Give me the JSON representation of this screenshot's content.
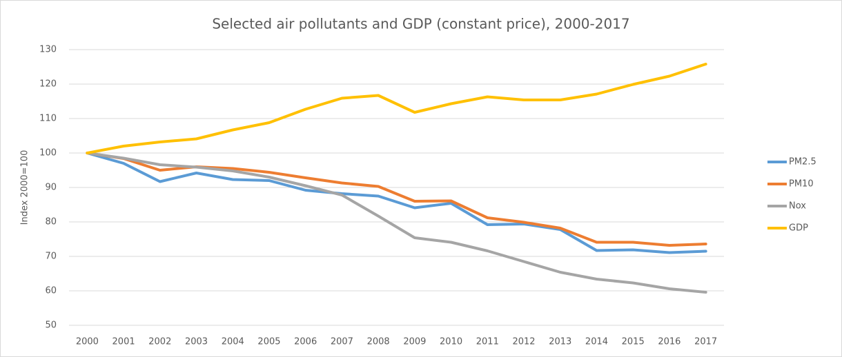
{
  "chart_data": {
    "type": "line",
    "title": "Selected air pollutants and GDP (constant price), 2000-2017",
    "y_label": "Index 2000=100",
    "x": [
      2000,
      2001,
      2002,
      2003,
      2004,
      2005,
      2006,
      2007,
      2008,
      2009,
      2010,
      2011,
      2012,
      2013,
      2014,
      2015,
      2016,
      2017
    ],
    "xlim": [
      1999.5,
      2017.5
    ],
    "ylim": [
      50,
      130
    ],
    "yticks": [
      50,
      60,
      70,
      80,
      90,
      100,
      110,
      120,
      130
    ],
    "grid": true,
    "legend": "right",
    "series": [
      {
        "name": "PM2.5",
        "color": "#5b9bd5",
        "values": [
          100,
          97,
          91.7,
          94.2,
          92.3,
          92,
          89.2,
          88.2,
          87.5,
          84.1,
          85.4,
          79.2,
          79.4,
          77.8,
          71.7,
          71.9,
          71.1,
          71.5
        ]
      },
      {
        "name": "PM10",
        "color": "#ed7d31",
        "values": [
          100,
          98.4,
          95,
          96,
          95.5,
          94.4,
          92.8,
          91.3,
          90.3,
          86,
          86.1,
          81.2,
          79.9,
          78.2,
          74.1,
          74.1,
          73.2,
          73.6
        ]
      },
      {
        "name": "Nox",
        "color": "#a5a5a5",
        "values": [
          100,
          98.5,
          96.6,
          95.9,
          94.8,
          93,
          90.5,
          87.8,
          81.7,
          75.4,
          74.1,
          71.6,
          68.5,
          65.4,
          63.4,
          62.3,
          60.6,
          59.6
        ]
      },
      {
        "name": "GDP",
        "color": "#ffc000",
        "values": [
          100,
          102,
          103.2,
          104.1,
          106.7,
          108.8,
          112.7,
          115.9,
          116.7,
          111.8,
          114.3,
          116.3,
          115.4,
          115.4,
          117.1,
          119.9,
          122.3,
          125.8
        ]
      }
    ]
  }
}
